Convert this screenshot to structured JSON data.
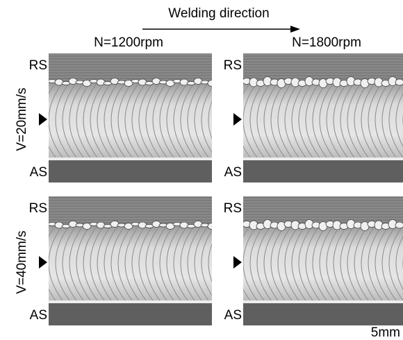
{
  "header": {
    "title": "Welding direction"
  },
  "columns": [
    {
      "label": "N=1200rpm"
    },
    {
      "label": "N=1800rpm"
    }
  ],
  "rows": [
    {
      "label": "V=20mm/s",
      "panels": [
        {
          "rs": "RS",
          "as": "AS"
        },
        {
          "rs": "RS",
          "as": "AS"
        }
      ]
    },
    {
      "label": "V=40mm/s",
      "panels": [
        {
          "rs": "RS",
          "as": "AS"
        },
        {
          "rs": "RS",
          "as": "AS"
        }
      ]
    }
  ],
  "scale_bar": "5mm"
}
